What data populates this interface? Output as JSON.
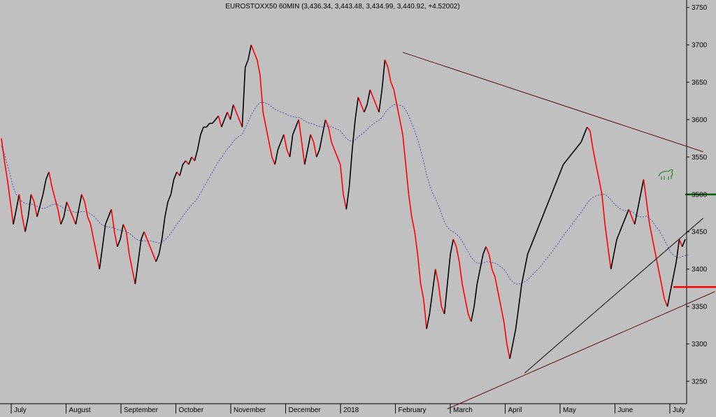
{
  "chart_data": {
    "type": "line",
    "title": "EUROSTOXX50 60MIN (3,436.34, 3,443.48, 3,434.99, 3,440.92, +4.52002)",
    "xlabel": "",
    "ylabel": "",
    "ylim": [
      3220,
      3760
    ],
    "y_ticks": [
      3250,
      3300,
      3350,
      3400,
      3450,
      3500,
      3550,
      3600,
      3650,
      3700,
      3750
    ],
    "y_tick_labels": [
      "3250",
      "3300",
      "3350",
      "3400",
      "3450",
      "3500",
      "3550",
      "3600",
      "3650",
      "3700",
      "3750"
    ],
    "x_labels": [
      "July",
      "August",
      "September",
      "October",
      "November",
      "December",
      "2018",
      "February",
      "March",
      "April",
      "May",
      "June",
      "July"
    ],
    "grid": false,
    "legend": "none",
    "series": [
      {
        "style": "price",
        "color": "#000000",
        "down_color": "#ff0000",
        "values": [
          3575,
          3545,
          3520,
          3490,
          3460,
          3480,
          3500,
          3470,
          3450,
          3470,
          3500,
          3490,
          3470,
          3485,
          3500,
          3520,
          3530,
          3510,
          3495,
          3480,
          3460,
          3470,
          3490,
          3480,
          3470,
          3460,
          3480,
          3500,
          3490,
          3470,
          3460,
          3440,
          3420,
          3400,
          3430,
          3460,
          3470,
          3480,
          3450,
          3430,
          3440,
          3460,
          3450,
          3420,
          3400,
          3380,
          3410,
          3440,
          3450,
          3440,
          3430,
          3420,
          3410,
          3420,
          3440,
          3470,
          3490,
          3500,
          3520,
          3530,
          3525,
          3540,
          3545,
          3540,
          3550,
          3545,
          3560,
          3580,
          3590,
          3590,
          3595,
          3595,
          3600,
          3605,
          3590,
          3600,
          3610,
          3600,
          3620,
          3610,
          3600,
          3590,
          3670,
          3680,
          3700,
          3690,
          3680,
          3660,
          3610,
          3590,
          3570,
          3550,
          3540,
          3560,
          3570,
          3580,
          3560,
          3550,
          3580,
          3590,
          3600,
          3570,
          3540,
          3560,
          3580,
          3570,
          3550,
          3560,
          3580,
          3600,
          3590,
          3570,
          3560,
          3550,
          3540,
          3500,
          3480,
          3510,
          3560,
          3600,
          3630,
          3620,
          3610,
          3620,
          3640,
          3630,
          3620,
          3610,
          3640,
          3680,
          3670,
          3650,
          3640,
          3620,
          3600,
          3580,
          3540,
          3500,
          3470,
          3450,
          3420,
          3380,
          3360,
          3320,
          3340,
          3370,
          3400,
          3380,
          3350,
          3340,
          3380,
          3420,
          3440,
          3430,
          3410,
          3380,
          3360,
          3340,
          3330,
          3350,
          3380,
          3400,
          3420,
          3430,
          3420,
          3400,
          3390,
          3370,
          3350,
          3330,
          3300,
          3280,
          3300,
          3320,
          3350,
          3380,
          3400,
          3420,
          3430,
          3440,
          3450,
          3460,
          3470,
          3480,
          3490,
          3500,
          3510,
          3520,
          3530,
          3540,
          3545,
          3550,
          3555,
          3560,
          3565,
          3570,
          3580,
          3590,
          3585,
          3560,
          3540,
          3520,
          3500,
          3460,
          3430,
          3400,
          3420,
          3440,
          3450,
          3460,
          3470,
          3480,
          3470,
          3460,
          3480,
          3500,
          3520,
          3490,
          3460,
          3440,
          3420,
          3400,
          3380,
          3360,
          3350,
          3370,
          3390,
          3410,
          3440,
          3430,
          3440
        ]
      },
      {
        "style": "moving-average",
        "color": "#4a4ab8",
        "values": [
          3565,
          3555,
          3540,
          3525,
          3510,
          3500,
          3495,
          3490,
          3488,
          3487,
          3487,
          3486,
          3484,
          3482,
          3481,
          3482,
          3484,
          3486,
          3487,
          3486,
          3484,
          3481,
          3479,
          3478,
          3477,
          3476,
          3476,
          3477,
          3477,
          3476,
          3474,
          3471,
          3467,
          3462,
          3459,
          3457,
          3456,
          3456,
          3455,
          3453,
          3452,
          3451,
          3450,
          3448,
          3445,
          3441,
          3439,
          3438,
          3438,
          3438,
          3438,
          3437,
          3436,
          3435,
          3436,
          3439,
          3443,
          3448,
          3454,
          3460,
          3465,
          3471,
          3476,
          3481,
          3486,
          3490,
          3495,
          3502,
          3509,
          3516,
          3523,
          3530,
          3537,
          3544,
          3549,
          3555,
          3561,
          3565,
          3571,
          3575,
          3578,
          3580,
          3589,
          3597,
          3606,
          3613,
          3619,
          3623,
          3623,
          3622,
          3620,
          3617,
          3614,
          3612,
          3610,
          3609,
          3607,
          3605,
          3604,
          3603,
          3603,
          3601,
          3598,
          3596,
          3595,
          3594,
          3592,
          3591,
          3590,
          3591,
          3591,
          3590,
          3589,
          3587,
          3585,
          3580,
          3575,
          3572,
          3571,
          3573,
          3577,
          3580,
          3583,
          3587,
          3591,
          3594,
          3597,
          3599,
          3603,
          3609,
          3614,
          3617,
          3620,
          3620,
          3619,
          3618,
          3613,
          3605,
          3595,
          3585,
          3573,
          3559,
          3544,
          3526,
          3513,
          3502,
          3494,
          3485,
          3474,
          3463,
          3456,
          3452,
          3450,
          3447,
          3443,
          3437,
          3430,
          3423,
          3416,
          3411,
          3408,
          3408,
          3408,
          3410,
          3410,
          3409,
          3408,
          3406,
          3403,
          3400,
          3394,
          3387,
          3383,
          3380,
          3380,
          3381,
          3383,
          3386,
          3390,
          3394,
          3398,
          3402,
          3407,
          3412,
          3417,
          3422,
          3428,
          3433,
          3439,
          3445,
          3450,
          3455,
          3460,
          3466,
          3471,
          3476,
          3482,
          3488,
          3493,
          3496,
          3498,
          3499,
          3500,
          3500,
          3497,
          3493,
          3488,
          3484,
          3481,
          3479,
          3478,
          3478,
          3477,
          3474,
          3471,
          3470,
          3470,
          3471,
          3468,
          3464,
          3458,
          3453,
          3446,
          3439,
          3431,
          3423,
          3419,
          3416,
          3415,
          3417,
          3418,
          3419
        ]
      }
    ],
    "trendlines": [
      {
        "from": {
          "x": 135,
          "y": 3690
        },
        "to": {
          "x": 236,
          "y": 3557
        },
        "color": "#5a1010"
      },
      {
        "from": {
          "x": 176,
          "y": 3261
        },
        "to": {
          "x": 236,
          "y": 3468
        },
        "color": "#000000"
      },
      {
        "from": {
          "x": 150,
          "y": 3213
        },
        "to": {
          "x": 240,
          "y": 3370
        },
        "color": "#5a1010"
      }
    ],
    "levels": [
      {
        "value": 3500,
        "color": "#006400",
        "x_from": 230,
        "x_to": 244
      },
      {
        "value": 3376,
        "color": "#ff0000",
        "x_from": 226,
        "x_to": 244
      }
    ],
    "annotation_icon": "bull-icon"
  }
}
